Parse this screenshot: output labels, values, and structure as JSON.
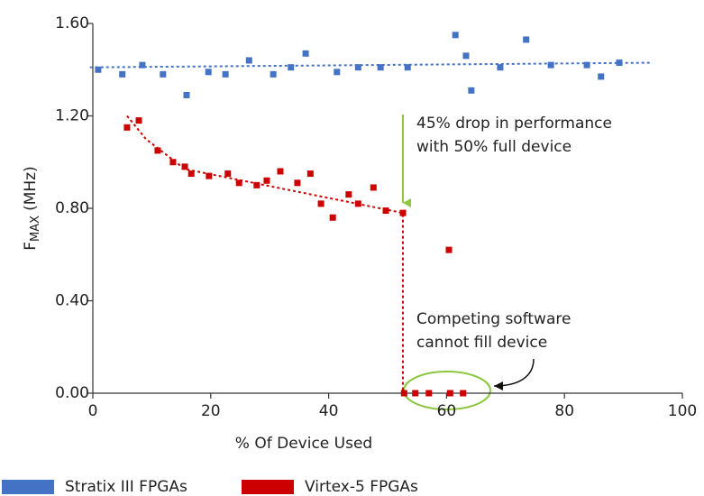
{
  "chart_data": {
    "type": "scatter",
    "xlabel": "% Of Device Used",
    "ylabel": {
      "main": "F",
      "sub": "MAX",
      "unit": "(MHz)"
    },
    "xlim": [
      0,
      100
    ],
    "xticks": [
      0,
      20,
      40,
      60,
      80,
      100
    ],
    "ylim": [
      0,
      1.6
    ],
    "yticks": [
      {
        "value": 0,
        "label": "0.00"
      },
      {
        "value": 0.4,
        "label": "0.40"
      },
      {
        "value": 0.8,
        "label": "0.80"
      },
      {
        "value": 1.2,
        "label": "1.20"
      },
      {
        "value": 1.6,
        "label": "1.60"
      }
    ],
    "series": [
      {
        "name": "Stratix III FPGAs",
        "color": "#4472c4",
        "x": [
          0.9,
          5.0,
          8.4,
          11.9,
          15.9,
          19.6,
          22.5,
          26.5,
          30.6,
          33.6,
          36.1,
          41.4,
          45.0,
          48.8,
          53.4,
          61.5,
          63.3,
          64.2,
          69.1,
          73.5,
          77.7,
          83.8,
          86.2,
          89.3
        ],
        "values": [
          1.4,
          1.38,
          1.42,
          1.38,
          1.29,
          1.39,
          1.38,
          1.44,
          1.38,
          1.41,
          1.47,
          1.39,
          1.41,
          1.41,
          1.41,
          1.55,
          1.46,
          1.31,
          1.41,
          1.53,
          1.42,
          1.42,
          1.37,
          1.43
        ]
      },
      {
        "name": "Virtex-5 FPGAs",
        "color": "#cc0000",
        "x": [
          5.8,
          7.8,
          11.0,
          13.6,
          15.6,
          16.7,
          19.7,
          22.9,
          24.8,
          27.8,
          29.5,
          31.8,
          34.7,
          36.9,
          38.7,
          40.7,
          43.4,
          45.0,
          47.6,
          49.7,
          52.6,
          60.4,
          52.8,
          54.7,
          57.0,
          60.6,
          62.8
        ],
        "values": [
          1.15,
          1.18,
          1.05,
          1.0,
          0.98,
          0.95,
          0.94,
          0.95,
          0.91,
          0.9,
          0.92,
          0.96,
          0.91,
          0.95,
          0.82,
          0.76,
          0.86,
          0.82,
          0.89,
          0.79,
          0.78,
          0.62,
          0,
          0,
          0,
          0,
          0
        ]
      }
    ],
    "trendlines": [
      {
        "color": "#4472c4",
        "x": [
          -0.5,
          94.9
        ],
        "values": [
          1.41,
          1.43
        ]
      },
      {
        "color": "#cc0000",
        "x": [
          5.8,
          9.0,
          15.6,
          52.6,
          52.6
        ],
        "values": [
          1.2,
          1.1,
          0.97,
          0.78,
          0
        ]
      }
    ],
    "annotations": [
      {
        "lines": [
          "45% drop in performance",
          "with 50% full device"
        ]
      },
      {
        "lines": [
          "Competing software",
          "cannot fill device"
        ]
      }
    ]
  }
}
